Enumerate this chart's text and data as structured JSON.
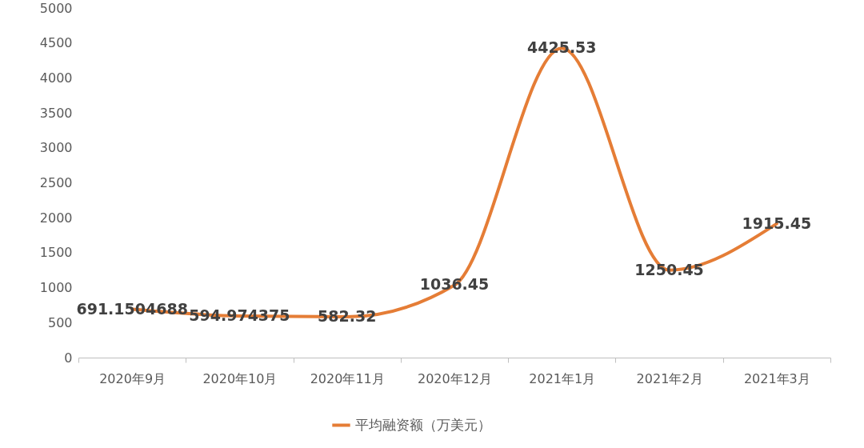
{
  "chart_data": {
    "type": "line",
    "categories": [
      "2020年9月",
      "2020年10月",
      "2020年11月",
      "2020年12月",
      "2021年1月",
      "2021年2月",
      "2021年3月"
    ],
    "series": [
      {
        "name": "平均融资额（万美元）",
        "color": "#e57d36",
        "values": [
          691.1504688,
          594.974375,
          582.32,
          1036.45,
          4425.53,
          1250.45,
          1915.45
        ]
      }
    ],
    "ylim": [
      0,
      5000
    ],
    "yticks": [
      0,
      500,
      1000,
      1500,
      2000,
      2500,
      3000,
      3500,
      4000,
      4500,
      5000
    ],
    "data_labels": true,
    "legend": "bottom",
    "grid": false,
    "marker": "none",
    "line_style": "solid"
  }
}
